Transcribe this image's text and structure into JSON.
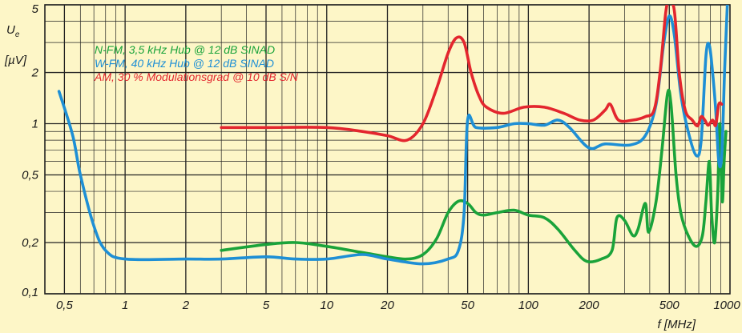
{
  "chart_data": {
    "type": "line",
    "x_scale": "log",
    "y_scale": "log",
    "xlim": [
      0.4,
      1000
    ],
    "ylim": [
      0.1,
      5
    ],
    "grid": true,
    "background": "#fdf6c7",
    "xlabel": "f [MHz]",
    "ylabel_main": "U",
    "ylabel_sub": "e",
    "ylabel_unit": "[µV]",
    "x_ticks": [
      {
        "v": 0.5,
        "label": "0,5"
      },
      {
        "v": 1,
        "label": "1"
      },
      {
        "v": 2,
        "label": "2"
      },
      {
        "v": 5,
        "label": "5"
      },
      {
        "v": 10,
        "label": "10"
      },
      {
        "v": 20,
        "label": "20"
      },
      {
        "v": 50,
        "label": "50"
      },
      {
        "v": 100,
        "label": "100"
      },
      {
        "v": 200,
        "label": "200"
      },
      {
        "v": 500,
        "label": "500"
      },
      {
        "v": 1000,
        "label": "1000"
      }
    ],
    "y_ticks": [
      {
        "v": 0.1,
        "label": "0,1"
      },
      {
        "v": 0.2,
        "label": "0,2"
      },
      {
        "v": 0.5,
        "label": "0,5"
      },
      {
        "v": 1,
        "label": "1"
      },
      {
        "v": 2,
        "label": "2"
      },
      {
        "v": 5,
        "label": "5"
      }
    ],
    "series": [
      {
        "name": "N-FM, 3,5 kHz Hub @ 12 dB SINAD",
        "color": "#1aa33a",
        "points": [
          [
            3,
            0.18
          ],
          [
            5,
            0.195
          ],
          [
            7,
            0.2
          ],
          [
            10,
            0.19
          ],
          [
            15,
            0.175
          ],
          [
            20,
            0.165
          ],
          [
            25,
            0.16
          ],
          [
            30,
            0.17
          ],
          [
            35,
            0.21
          ],
          [
            40,
            0.3
          ],
          [
            45,
            0.35
          ],
          [
            50,
            0.34
          ],
          [
            55,
            0.3
          ],
          [
            60,
            0.29
          ],
          [
            70,
            0.3
          ],
          [
            85,
            0.31
          ],
          [
            100,
            0.29
          ],
          [
            120,
            0.28
          ],
          [
            140,
            0.24
          ],
          [
            170,
            0.18
          ],
          [
            195,
            0.155
          ],
          [
            230,
            0.16
          ],
          [
            260,
            0.18
          ],
          [
            275,
            0.28
          ],
          [
            300,
            0.27
          ],
          [
            330,
            0.22
          ],
          [
            350,
            0.24
          ],
          [
            380,
            0.34
          ],
          [
            395,
            0.23
          ],
          [
            430,
            0.35
          ],
          [
            460,
            0.7
          ],
          [
            490,
            1.5
          ],
          [
            510,
            1.3
          ],
          [
            540,
            0.5
          ],
          [
            570,
            0.3
          ],
          [
            620,
            0.22
          ],
          [
            680,
            0.19
          ],
          [
            730,
            0.22
          ],
          [
            760,
            0.35
          ],
          [
            790,
            0.6
          ],
          [
            810,
            0.3
          ],
          [
            840,
            0.2
          ],
          [
            870,
            0.4
          ],
          [
            890,
            1.0
          ],
          [
            915,
            0.35
          ],
          [
            935,
            0.6
          ],
          [
            955,
            0.9
          ]
        ]
      },
      {
        "name": "W-FM, 40 kHz Hub @ 12 dB SINAD",
        "color": "#1e8fd5",
        "points": [
          [
            0.47,
            1.55
          ],
          [
            0.55,
            0.85
          ],
          [
            0.6,
            0.5
          ],
          [
            0.7,
            0.25
          ],
          [
            0.8,
            0.18
          ],
          [
            1,
            0.16
          ],
          [
            2,
            0.16
          ],
          [
            3,
            0.16
          ],
          [
            5,
            0.165
          ],
          [
            7,
            0.16
          ],
          [
            10,
            0.16
          ],
          [
            15,
            0.17
          ],
          [
            20,
            0.16
          ],
          [
            30,
            0.15
          ],
          [
            40,
            0.16
          ],
          [
            45,
            0.18
          ],
          [
            48,
            0.3
          ],
          [
            50,
            1.05
          ],
          [
            55,
            0.95
          ],
          [
            70,
            0.95
          ],
          [
            85,
            1.0
          ],
          [
            100,
            1.0
          ],
          [
            120,
            0.98
          ],
          [
            140,
            1.05
          ],
          [
            160,
            0.95
          ],
          [
            200,
            0.72
          ],
          [
            240,
            0.76
          ],
          [
            320,
            0.75
          ],
          [
            380,
            0.85
          ],
          [
            430,
            1.3
          ],
          [
            470,
            3.0
          ],
          [
            500,
            4.3
          ],
          [
            530,
            3.3
          ],
          [
            570,
            1.5
          ],
          [
            620,
            0.9
          ],
          [
            680,
            0.65
          ],
          [
            720,
            0.8
          ],
          [
            760,
            2.5
          ],
          [
            790,
            2.9
          ],
          [
            820,
            2.0
          ],
          [
            850,
            1.2
          ],
          [
            880,
            0.6
          ],
          [
            910,
            0.65
          ],
          [
            940,
            2.0
          ],
          [
            970,
            5.0
          ]
        ]
      },
      {
        "name": "AM, 30 % Modulationsgrad @ 10 dB S/N",
        "color": "#e3262e",
        "points": [
          [
            3,
            0.95
          ],
          [
            5,
            0.95
          ],
          [
            10,
            0.95
          ],
          [
            15,
            0.9
          ],
          [
            20,
            0.85
          ],
          [
            25,
            0.8
          ],
          [
            30,
            1.0
          ],
          [
            35,
            1.6
          ],
          [
            40,
            2.6
          ],
          [
            44,
            3.2
          ],
          [
            48,
            3.0
          ],
          [
            52,
            2.0
          ],
          [
            57,
            1.45
          ],
          [
            62,
            1.25
          ],
          [
            75,
            1.15
          ],
          [
            95,
            1.25
          ],
          [
            120,
            1.25
          ],
          [
            150,
            1.15
          ],
          [
            180,
            1.05
          ],
          [
            210,
            1.05
          ],
          [
            240,
            1.2
          ],
          [
            255,
            1.3
          ],
          [
            280,
            1.05
          ],
          [
            330,
            1.05
          ],
          [
            380,
            1.1
          ],
          [
            420,
            1.2
          ],
          [
            450,
            2.0
          ],
          [
            480,
            4.5
          ],
          [
            500,
            5.2
          ],
          [
            530,
            4.6
          ],
          [
            560,
            2.0
          ],
          [
            600,
            1.2
          ],
          [
            650,
            1.05
          ],
          [
            690,
            0.97
          ],
          [
            720,
            1.1
          ],
          [
            750,
            1.05
          ],
          [
            780,
            0.98
          ],
          [
            820,
            1.05
          ],
          [
            850,
            0.98
          ],
          [
            880,
            1.3
          ],
          [
            910,
            1.3
          ]
        ]
      }
    ]
  }
}
